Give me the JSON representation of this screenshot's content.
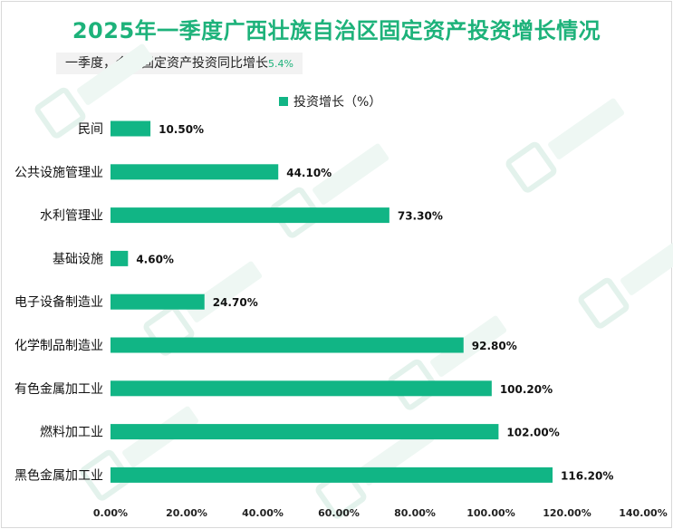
{
  "title": "2025年一季度广西壮族自治区固定资产投资增长情况",
  "subtitle": {
    "text": "一季度，全区固定资产投资同比增长",
    "value": "5.4%"
  },
  "colors": {
    "bar": "#11b585",
    "title": "#1db27a"
  },
  "chart_data": {
    "type": "bar",
    "orientation": "horizontal",
    "legend": "top",
    "grid": false,
    "series": [
      {
        "name": "投资增长（%）",
        "values": [
          10.5,
          44.1,
          73.3,
          4.6,
          24.7,
          92.8,
          100.2,
          102.0,
          116.2
        ]
      }
    ],
    "categories": [
      "民间",
      "公共设施管理业",
      "水利管理业",
      "基础设施",
      "电子设备制造业",
      "化学制品制造业",
      "有色金属加工业",
      "燃料加工业",
      "黑色金属加工业"
    ],
    "data_labels": [
      "10.50%",
      "44.10%",
      "73.30%",
      "4.60%",
      "24.70%",
      "92.80%",
      "100.20%",
      "102.00%",
      "116.20%"
    ],
    "xlim": [
      0,
      140
    ],
    "x_ticks": [
      0,
      20,
      40,
      60,
      80,
      100,
      120,
      140
    ],
    "x_tick_labels": [
      "0.00%",
      "20.00%",
      "40.00%",
      "60.00%",
      "80.00%",
      "100.00%",
      "120.00%",
      "140.00%"
    ]
  }
}
